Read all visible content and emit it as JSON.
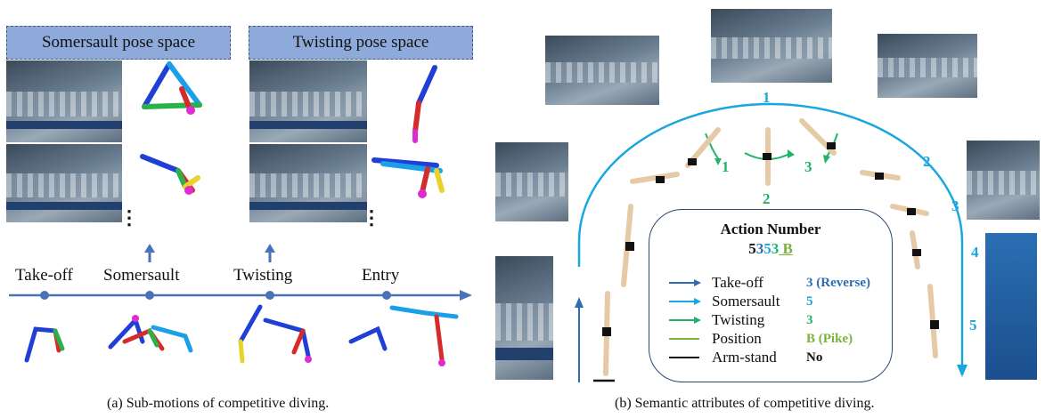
{
  "left_panel": {
    "somersault_space": "Somersault pose space",
    "twisting_space": "Twisting pose space",
    "ellipsis": "⋮",
    "timeline": [
      "Take-off",
      "Somersault",
      "Twisting",
      "Entry"
    ],
    "caption": "(a) Sub-motions of competitive diving."
  },
  "right_panel": {
    "arc_numbers": [
      "1",
      "2",
      "3",
      "4",
      "5"
    ],
    "twist_numbers": [
      "1",
      "2",
      "3"
    ],
    "action_box": {
      "title": "Action Number",
      "code_parts": [
        {
          "text": "5",
          "color": "#111111"
        },
        {
          "text": "3",
          "color": "#2e6db4"
        },
        {
          "text": "5",
          "color": "#1aa7e0"
        },
        {
          "text": "3",
          "color": "#22b36b"
        },
        {
          "text": " B",
          "color": "#78b33a"
        }
      ],
      "rows": [
        {
          "label": "Take-off",
          "value": "3 (Reverse)",
          "color": "#2e6db4",
          "marker": "arrow"
        },
        {
          "label": "Somersault",
          "value": "5",
          "color": "#1aa7e0",
          "marker": "arrow"
        },
        {
          "label": "Twisting",
          "value": "3",
          "color": "#22b36b",
          "marker": "arrow"
        },
        {
          "label": "Position",
          "value": "B (Pike)",
          "color": "#78b33a",
          "marker": "line"
        },
        {
          "label": "Arm-stand",
          "value": "No",
          "color": "#111111",
          "marker": "line"
        }
      ]
    },
    "caption": "(b) Semantic attributes of competitive diving."
  },
  "colors": {
    "timeline": "#4a72b8",
    "arc": "#1aa7e0",
    "twist": "#22b36b",
    "label_fill": "#8eaadb"
  }
}
